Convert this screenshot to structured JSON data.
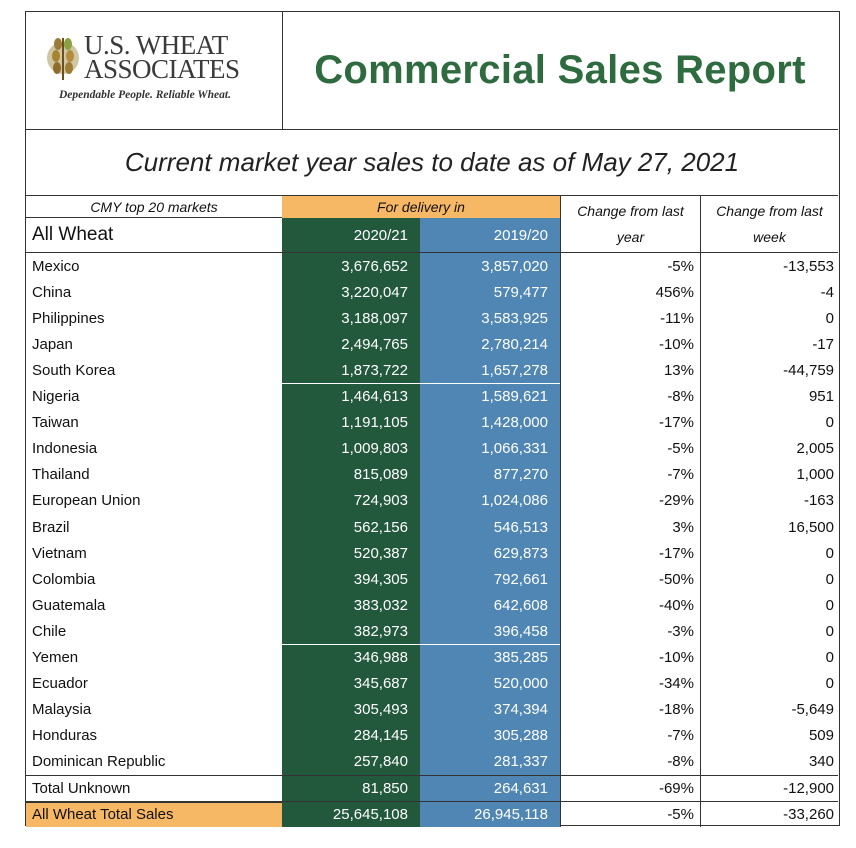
{
  "header": {
    "logo_line1": "U.S. WHEAT",
    "logo_line2": "ASSOCIATES",
    "logo_tagline": "Dependable People. Reliable Wheat.",
    "title": "Commercial Sales Report"
  },
  "subtitle": "Current market year sales to date as of May 27, 2021",
  "table": {
    "top_markets_label": "CMY top 20 markets",
    "delivery_label": "For delivery in",
    "commodity_label": "All Wheat",
    "current_year": "2020/21",
    "prior_year": "2019/20",
    "change_year_line1": "Change from last",
    "change_year_line2": "year",
    "change_week_line1": "Change from last",
    "change_week_line2": "week",
    "rows": [
      {
        "market": "Mexico",
        "cur": "3,676,652",
        "prev": "3,857,020",
        "chg_year": "-5%",
        "chg_week": "-13,553"
      },
      {
        "market": "China",
        "cur": "3,220,047",
        "prev": "579,477",
        "chg_year": "456%",
        "chg_week": "-4"
      },
      {
        "market": "Philippines",
        "cur": "3,188,097",
        "prev": "3,583,925",
        "chg_year": "-11%",
        "chg_week": "0"
      },
      {
        "market": "Japan",
        "cur": "2,494,765",
        "prev": "2,780,214",
        "chg_year": "-10%",
        "chg_week": "-17"
      },
      {
        "market": "South Korea",
        "cur": "1,873,722",
        "prev": "1,657,278",
        "chg_year": "13%",
        "chg_week": "-44,759"
      },
      {
        "market": "Nigeria",
        "cur": "1,464,613",
        "prev": "1,589,621",
        "chg_year": "-8%",
        "chg_week": "951"
      },
      {
        "market": "Taiwan",
        "cur": "1,191,105",
        "prev": "1,428,000",
        "chg_year": "-17%",
        "chg_week": "0"
      },
      {
        "market": "Indonesia",
        "cur": "1,009,803",
        "prev": "1,066,331",
        "chg_year": "-5%",
        "chg_week": "2,005"
      },
      {
        "market": "Thailand",
        "cur": "815,089",
        "prev": "877,270",
        "chg_year": "-7%",
        "chg_week": "1,000"
      },
      {
        "market": "European Union",
        "cur": "724,903",
        "prev": "1,024,086",
        "chg_year": "-29%",
        "chg_week": "-163"
      },
      {
        "market": "Brazil",
        "cur": "562,156",
        "prev": "546,513",
        "chg_year": "3%",
        "chg_week": "16,500"
      },
      {
        "market": "Vietnam",
        "cur": "520,387",
        "prev": "629,873",
        "chg_year": "-17%",
        "chg_week": "0"
      },
      {
        "market": "Colombia",
        "cur": "394,305",
        "prev": "792,661",
        "chg_year": "-50%",
        "chg_week": "0"
      },
      {
        "market": "Guatemala",
        "cur": "383,032",
        "prev": "642,608",
        "chg_year": "-40%",
        "chg_week": "0"
      },
      {
        "market": "Chile",
        "cur": "382,973",
        "prev": "396,458",
        "chg_year": "-3%",
        "chg_week": "0"
      },
      {
        "market": "Yemen",
        "cur": "346,988",
        "prev": "385,285",
        "chg_year": "-10%",
        "chg_week": "0"
      },
      {
        "market": "Ecuador",
        "cur": "345,687",
        "prev": "520,000",
        "chg_year": "-34%",
        "chg_week": "0"
      },
      {
        "market": "Malaysia",
        "cur": "305,493",
        "prev": "374,394",
        "chg_year": "-18%",
        "chg_week": "-5,649"
      },
      {
        "market": "Honduras",
        "cur": "284,145",
        "prev": "305,288",
        "chg_year": "-7%",
        "chg_week": "509"
      },
      {
        "market": "Dominican Republic",
        "cur": "257,840",
        "prev": "281,337",
        "chg_year": "-8%",
        "chg_week": "340"
      }
    ],
    "unknown": {
      "market": "Total Unknown",
      "cur": "81,850",
      "prev": "264,631",
      "chg_year": "-69%",
      "chg_week": "-12,900"
    },
    "total": {
      "market": "All Wheat Total Sales",
      "cur": "25,645,108",
      "prev": "26,945,118",
      "chg_year": "-5%",
      "chg_week": "-33,260"
    }
  },
  "colors": {
    "title_green": "#2e6b3f",
    "current_year_fill": "#22583b",
    "prior_year_fill": "#4f86b3",
    "highlight_orange": "#f7b865"
  }
}
